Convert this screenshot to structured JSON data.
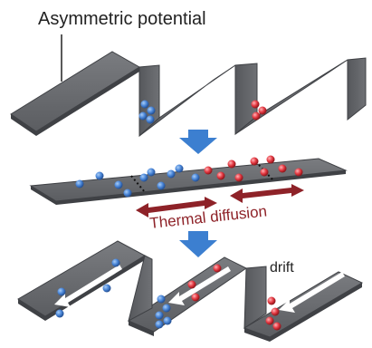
{
  "labels": {
    "title": "Asymmetric potential",
    "thermal": "Thermal diffusion",
    "drift": "drift"
  },
  "colors": {
    "surface_top": "#6b6d71",
    "surface_edge": "#3f4145",
    "surface_dark": "#4f5155",
    "blue_particle": "#3f7fd6",
    "red_particle": "#e0323c",
    "down_arrow": "#3c7fd0",
    "thermal_arrow": "#8e2228",
    "drift_arrow": "#ffffff"
  },
  "icons": {
    "process_arrow": "down-arrow-icon",
    "diffusion_arrow": "double-arrow-icon",
    "drift_arrow": "arrow-left-icon"
  }
}
